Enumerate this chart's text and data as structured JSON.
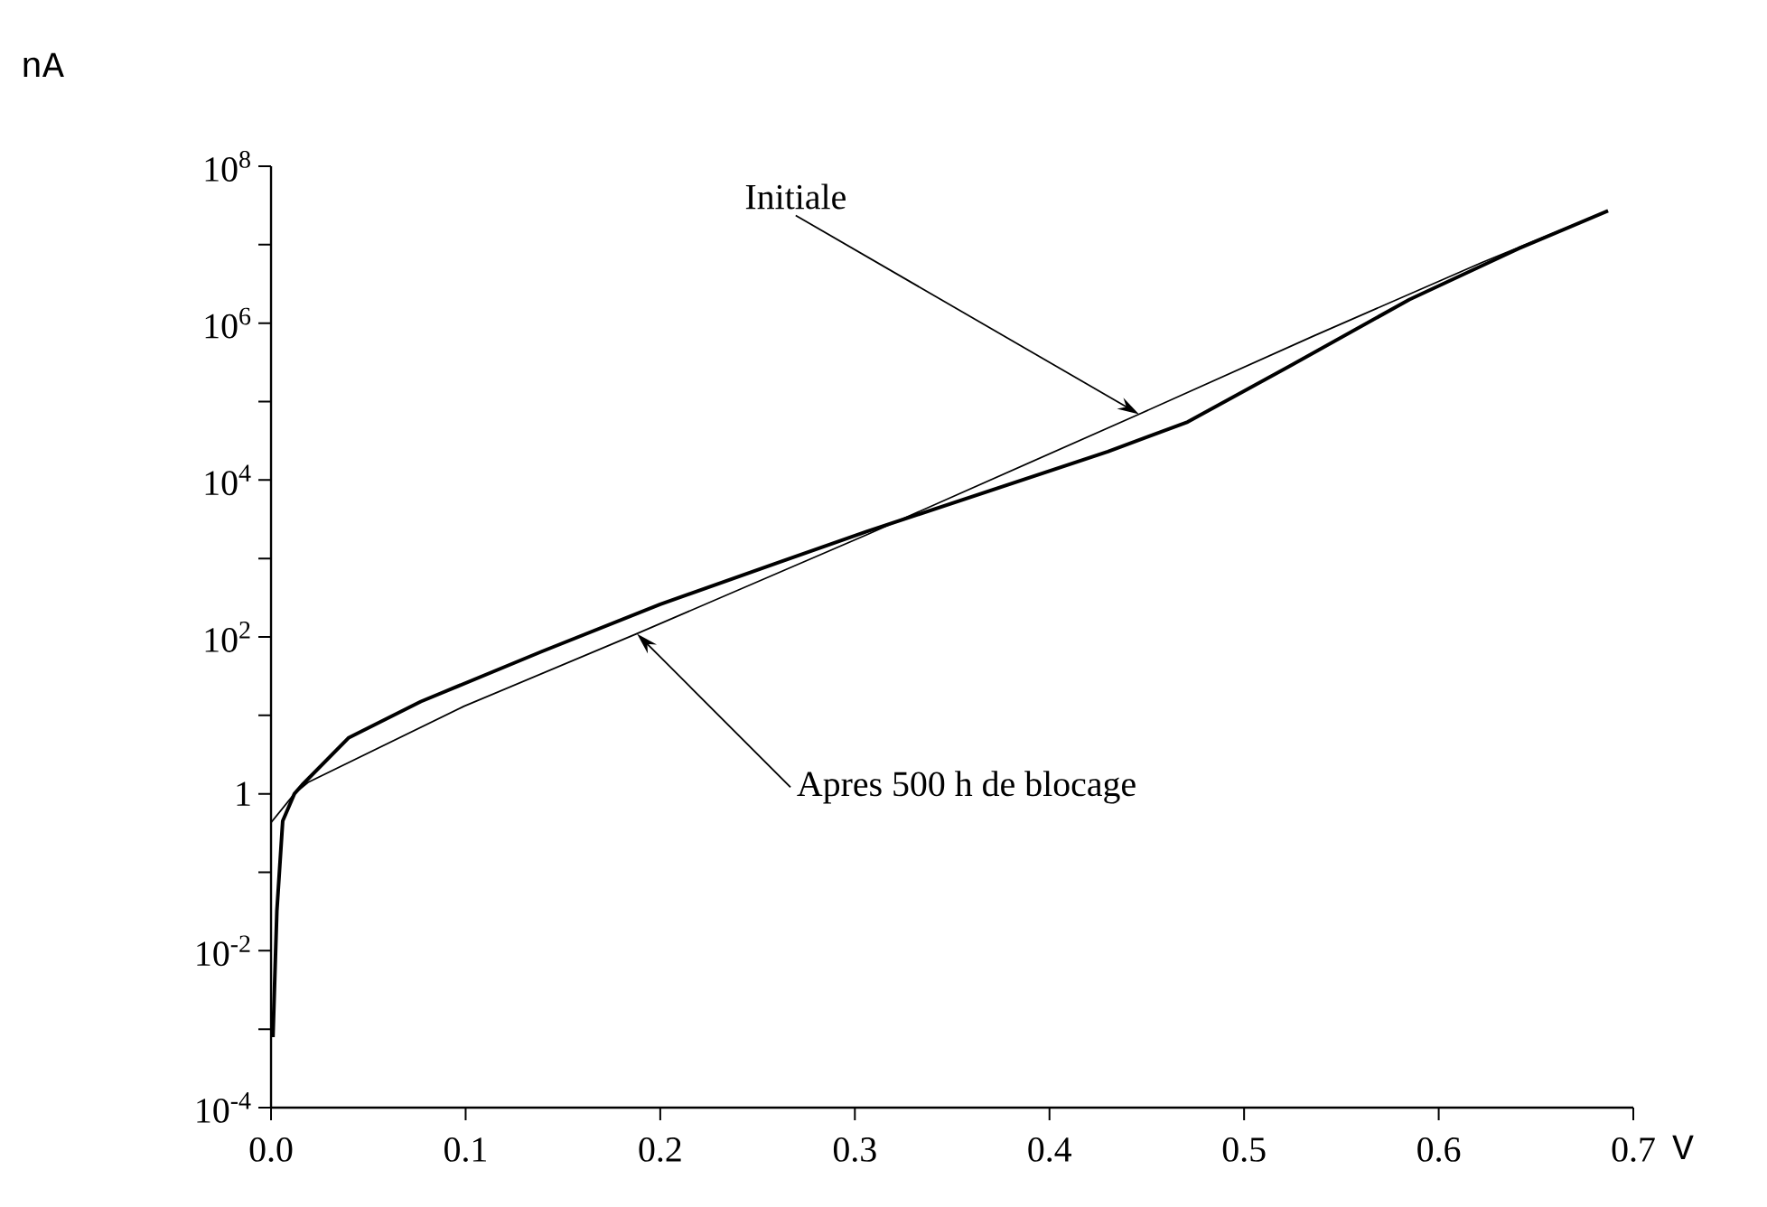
{
  "chart_data": {
    "type": "line",
    "xlabel": "V",
    "ylabel": "nA",
    "log": "y",
    "xlim": [
      0,
      0.7
    ],
    "ylim": [
      0.0001,
      100000000
    ],
    "xticks": [
      {
        "value": 0,
        "label": "0.0"
      },
      0.1,
      0.2,
      0.3,
      0.4,
      0.5,
      0.6,
      0.7
    ],
    "yticks": [
      {
        "value": 0.0001,
        "label": "10$^{-4}$"
      },
      {
        "value": 0.001,
        "label": null
      },
      {
        "value": 0.01,
        "label": "10$^{-2}$"
      },
      {
        "value": 0.1,
        "label": null
      },
      {
        "value": 1,
        "label": "1"
      },
      {
        "value": 10,
        "label": null
      },
      {
        "value": 100,
        "label": "10$^{2}$"
      },
      {
        "value": 1000,
        "label": null
      },
      {
        "value": 10000,
        "label": "10$^{4}$"
      },
      {
        "value": 100000,
        "label": null
      },
      {
        "value": 1000000,
        "label": "10$^{6}$"
      },
      {
        "value": 10000000,
        "label": null
      },
      {
        "value": 100000000,
        "label": "10$^{8}$"
      }
    ],
    "series": [
      {
        "color": "#000000",
        "x": [
          0,
          0.012,
          0.019,
          0.099,
          0.188,
          0.306,
          0.446,
          0.536,
          0.622,
          0.687
        ],
        "values": [
          0.43,
          1,
          1.4,
          13,
          110,
          2000,
          69000,
          690000,
          5900000,
          27000000
        ]
      },
      {
        "color": "#000000",
        "x": [
          0.001,
          0.003,
          0.006,
          0.012,
          0.016,
          0.04,
          0.077,
          0.139,
          0.2,
          0.263,
          0.306,
          0.43,
          0.471,
          0.523,
          0.585,
          0.641,
          0.687
        ],
        "values": [
          0.00079,
          0.032,
          0.45,
          1,
          1.3,
          5.2,
          15,
          65,
          260,
          930,
          2200,
          23000,
          55000,
          280000,
          2000000,
          8900000,
          27000000
        ]
      }
    ],
    "annotations": [
      {
        "text": "Initiale",
        "x": 0.446,
        "y": 69000
      },
      {
        "text": "Apres 500 h de blocage",
        "x": 0.188,
        "y": 110
      }
    ]
  }
}
